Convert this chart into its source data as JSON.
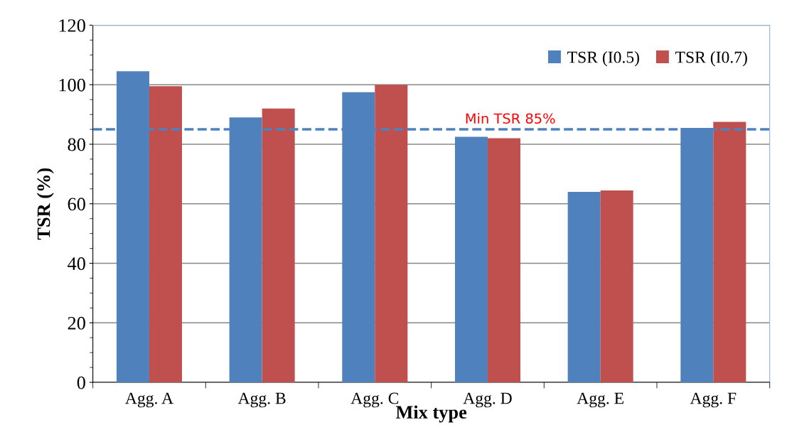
{
  "chart_data": {
    "type": "bar",
    "xlabel": "Mix type",
    "ylabel": "TSR (%)",
    "categories": [
      "Agg. A",
      "Agg. B",
      "Agg. C",
      "Agg. D",
      "Agg. E",
      "Agg. F"
    ],
    "series": [
      {
        "name": "TSR (I0.5)",
        "color": "#4f81bd",
        "values": [
          104.5,
          89,
          97.5,
          82.5,
          64,
          85.5
        ]
      },
      {
        "name": "TSR (I0.7)",
        "color": "#c0504d",
        "values": [
          99.5,
          92,
          100,
          82,
          64.5,
          87.5
        ]
      }
    ],
    "ylim": [
      0,
      120
    ],
    "yticks": [
      0,
      20,
      40,
      60,
      80,
      100,
      120
    ],
    "grid": "y",
    "legend": "top right",
    "ref_lines": [
      {
        "axis": "y",
        "value": 85,
        "label": "Min TSR 85%",
        "color": "#4f81bd",
        "line_style": "dashed"
      }
    ]
  }
}
